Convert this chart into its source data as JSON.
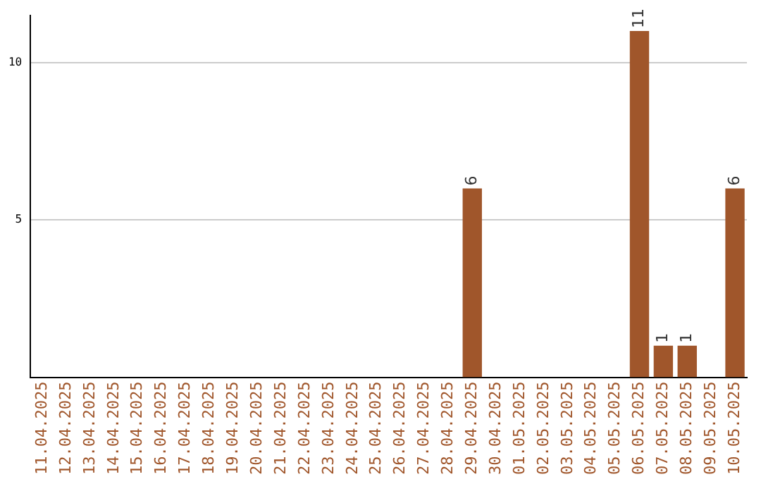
{
  "chart_data": {
    "type": "bar",
    "categories": [
      "11.04.2025",
      "12.04.2025",
      "13.04.2025",
      "14.04.2025",
      "15.04.2025",
      "16.04.2025",
      "17.04.2025",
      "18.04.2025",
      "19.04.2025",
      "20.04.2025",
      "21.04.2025",
      "22.04.2025",
      "23.04.2025",
      "24.04.2025",
      "25.04.2025",
      "26.04.2025",
      "27.04.2025",
      "28.04.2025",
      "29.04.2025",
      "30.04.2025",
      "01.05.2025",
      "02.05.2025",
      "03.05.2025",
      "04.05.2025",
      "05.05.2025",
      "06.05.2025",
      "07.05.2025",
      "08.05.2025",
      "09.05.2025",
      "10.05.2025"
    ],
    "values": [
      0,
      0,
      0,
      0,
      0,
      0,
      0,
      0,
      0,
      0,
      0,
      0,
      0,
      0,
      0,
      0,
      0,
      0,
      6,
      0,
      0,
      0,
      0,
      0,
      0,
      11,
      1,
      1,
      0,
      6
    ],
    "value_labels": [
      null,
      null,
      null,
      null,
      null,
      null,
      null,
      null,
      null,
      null,
      null,
      null,
      null,
      null,
      null,
      null,
      null,
      null,
      "6",
      null,
      null,
      null,
      null,
      null,
      null,
      "11",
      "1",
      "1",
      null,
      "6"
    ],
    "color": "#a0562b",
    "ylim": [
      0,
      11.5
    ],
    "yticks": [
      5,
      10
    ],
    "grid": "y",
    "legend": false
  }
}
